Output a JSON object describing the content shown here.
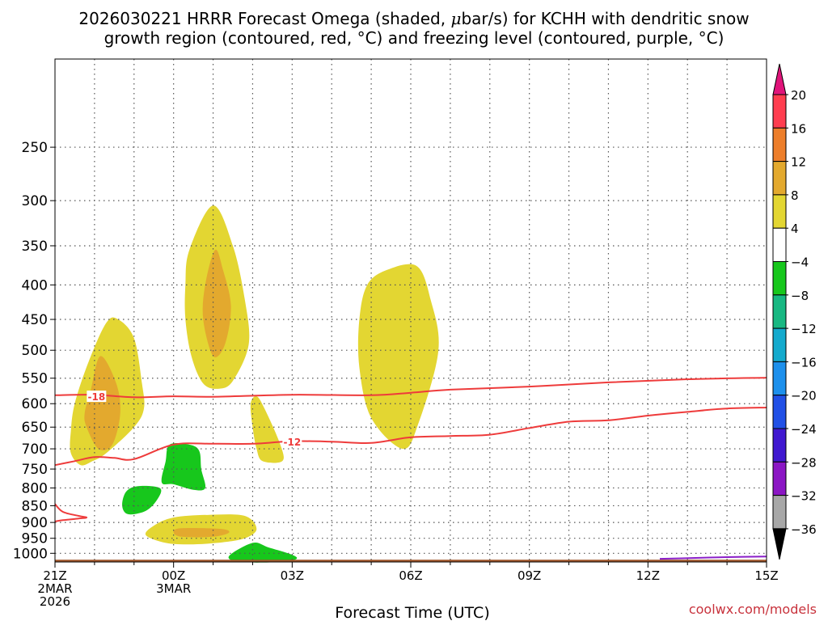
{
  "title": {
    "line1_pre": "2026030221 HRRR Forecast Omega (shaded, ",
    "line1_mu": "μ",
    "line1_post": "bar/s) for KCHH with dendritic snow",
    "line2": "growth region (contoured, red, °C) and freezing level (contoured, purple, °C)"
  },
  "watermark": "coolwx.com/models",
  "chart_data": {
    "type": "time-height cross section",
    "xlabel": "Forecast Time (UTC)",
    "ylabel": "",
    "x_range_hours": [
      0,
      18
    ],
    "y_range_hPa": [
      1030,
      185
    ],
    "y_ticks": [
      250,
      300,
      350,
      400,
      450,
      500,
      550,
      600,
      650,
      700,
      750,
      800,
      850,
      900,
      950,
      1000
    ],
    "x_ticks": [
      {
        "hour": 0,
        "lines": [
          "21Z",
          "2MAR",
          "2026"
        ]
      },
      {
        "hour": 3,
        "lines": [
          "00Z",
          "3MAR"
        ]
      },
      {
        "hour": 6,
        "lines": [
          "03Z"
        ]
      },
      {
        "hour": 9,
        "lines": [
          "06Z"
        ]
      },
      {
        "hour": 12,
        "lines": [
          "09Z"
        ]
      },
      {
        "hour": 15,
        "lines": [
          "12Z"
        ]
      },
      {
        "hour": 18,
        "lines": [
          "15Z"
        ]
      }
    ],
    "contour_labels": [
      {
        "text": "-18",
        "hour": 1.05,
        "p": 585
      },
      {
        "text": "-12",
        "hour": 6.0,
        "p": 683
      }
    ],
    "colorbar": {
      "labels": [
        "20",
        "16",
        "12",
        "8",
        "4",
        "−4",
        "−8",
        "−12",
        "−16",
        "−20",
        "−24",
        "−28",
        "−32",
        "−36"
      ],
      "colors": [
        "#ff3d4f",
        "#ed7e2b",
        "#e3a92e",
        "#e3d632",
        "#ffffff",
        "#17c71c",
        "#18b882",
        "#14aacd",
        "#1d90ec",
        "#2150e6",
        "#4018d0",
        "#8b16c4",
        "#a7a7a7"
      ],
      "top_color": "#e0147a",
      "bottom_color": "#000000"
    },
    "omega_regions": [
      {
        "name": "omega-plus4-a",
        "level": "4 to 8",
        "points": [
          [
            0.4,
            710
          ],
          [
            0.65,
            740
          ],
          [
            0.95,
            730
          ],
          [
            1.3,
            710
          ],
          [
            2.0,
            650
          ],
          [
            2.25,
            610
          ],
          [
            2.2,
            560
          ],
          [
            2.0,
            480
          ],
          [
            1.6,
            450
          ],
          [
            1.3,
            455
          ],
          [
            0.85,
            520
          ],
          [
            0.5,
            600
          ],
          [
            0.4,
            660
          ]
        ]
      },
      {
        "name": "omega-plus8-a",
        "level": "8 to 12",
        "points": [
          [
            0.8,
            650
          ],
          [
            1.1,
            700
          ],
          [
            1.45,
            690
          ],
          [
            1.65,
            620
          ],
          [
            1.55,
            560
          ],
          [
            1.15,
            510
          ],
          [
            0.9,
            575
          ],
          [
            0.75,
            620
          ]
        ]
      },
      {
        "name": "omega-plus4-b",
        "level": "4 to 8",
        "points": [
          [
            3.3,
            450
          ],
          [
            3.45,
            510
          ],
          [
            3.75,
            560
          ],
          [
            4.15,
            570
          ],
          [
            4.5,
            555
          ],
          [
            4.9,
            490
          ],
          [
            4.8,
            420
          ],
          [
            4.5,
            350
          ],
          [
            4.0,
            305
          ],
          [
            3.4,
            355
          ],
          [
            3.3,
            400
          ]
        ]
      },
      {
        "name": "omega-plus8-b",
        "level": "8 to 12",
        "points": [
          [
            3.75,
            450
          ],
          [
            4.0,
            510
          ],
          [
            4.3,
            490
          ],
          [
            4.45,
            430
          ],
          [
            4.25,
            380
          ],
          [
            4.05,
            355
          ],
          [
            3.8,
            400
          ]
        ]
      },
      {
        "name": "omega-plus4-c",
        "level": "4 to 8",
        "points": [
          [
            5.0,
            650
          ],
          [
            5.1,
            700
          ],
          [
            5.25,
            730
          ],
          [
            5.75,
            730
          ],
          [
            5.7,
            690
          ],
          [
            5.3,
            610
          ],
          [
            5.1,
            585
          ],
          [
            4.95,
            600
          ]
        ]
      },
      {
        "name": "omega-plus4-d",
        "level": "4 to 8",
        "points": [
          [
            7.7,
            450
          ],
          [
            7.7,
            530
          ],
          [
            8.0,
            630
          ],
          [
            8.8,
            700
          ],
          [
            9.2,
            640
          ],
          [
            9.7,
            500
          ],
          [
            9.5,
            420
          ],
          [
            9.15,
            375
          ],
          [
            8.4,
            380
          ],
          [
            7.9,
            400
          ]
        ]
      },
      {
        "name": "omega-plus4-e",
        "level": "4 to 8",
        "points": [
          [
            2.3,
            940
          ],
          [
            2.8,
            965
          ],
          [
            3.4,
            970
          ],
          [
            4.1,
            965
          ],
          [
            4.8,
            950
          ],
          [
            5.1,
            920
          ],
          [
            4.8,
            880
          ],
          [
            3.9,
            877
          ],
          [
            3.0,
            885
          ],
          [
            2.5,
            910
          ]
        ]
      },
      {
        "name": "omega-plus8-e",
        "level": "8 to 12",
        "points": [
          [
            3.0,
            930
          ],
          [
            3.2,
            945
          ],
          [
            4.0,
            945
          ],
          [
            4.4,
            932
          ],
          [
            4.2,
            920
          ],
          [
            3.2,
            918
          ]
        ]
      },
      {
        "name": "omega-minus4-a",
        "level": "-4 to -8",
        "points": [
          [
            2.8,
            730
          ],
          [
            2.9,
            690
          ],
          [
            3.4,
            690
          ],
          [
            3.65,
            705
          ],
          [
            3.7,
            750
          ],
          [
            3.8,
            800
          ],
          [
            3.5,
            805
          ],
          [
            3.0,
            790
          ],
          [
            2.7,
            785
          ]
        ]
      },
      {
        "name": "omega-minus4-b",
        "level": "-4 to -8",
        "points": [
          [
            1.8,
            810
          ],
          [
            1.7,
            850
          ],
          [
            1.85,
            875
          ],
          [
            2.3,
            865
          ],
          [
            2.6,
            830
          ],
          [
            2.65,
            800
          ],
          [
            2.1,
            795
          ]
        ]
      },
      {
        "name": "omega-minus4-c",
        "level": "-4 to -8",
        "points": [
          [
            4.4,
            1010
          ],
          [
            4.7,
            1030
          ],
          [
            5.7,
            1030
          ],
          [
            6.1,
            1020
          ],
          [
            6.0,
            1005
          ],
          [
            5.4,
            980
          ],
          [
            5.0,
            965
          ]
        ]
      }
    ],
    "dgz_contours": [
      {
        "name": "dgz-minus18-contour",
        "label": "-18",
        "points": [
          [
            0,
            583
          ],
          [
            1,
            582
          ],
          [
            2,
            587
          ],
          [
            3,
            585
          ],
          [
            4,
            586
          ],
          [
            6,
            582
          ],
          [
            8,
            583
          ],
          [
            9,
            578
          ],
          [
            10,
            572
          ],
          [
            12,
            566
          ],
          [
            14,
            558
          ],
          [
            16,
            552
          ],
          [
            18,
            549
          ]
        ]
      },
      {
        "name": "dgz-minus12-contour",
        "label": "-12",
        "points": [
          [
            0,
            740
          ],
          [
            0.5,
            730
          ],
          [
            1,
            720
          ],
          [
            1.5,
            722
          ],
          [
            2,
            725
          ],
          [
            3,
            690
          ],
          [
            4,
            688
          ],
          [
            5,
            688
          ],
          [
            6,
            682
          ],
          [
            7,
            683
          ],
          [
            8,
            686
          ],
          [
            9,
            673
          ],
          [
            10,
            670
          ],
          [
            11,
            667
          ],
          [
            12,
            652
          ],
          [
            13,
            638
          ],
          [
            14,
            635
          ],
          [
            15,
            625
          ],
          [
            16,
            617
          ],
          [
            17,
            610
          ],
          [
            18,
            608
          ]
        ]
      },
      {
        "name": "dgz-lower-contour",
        "label": "",
        "points": [
          [
            0,
            845
          ],
          [
            0.2,
            868
          ],
          [
            0.6,
            880
          ],
          [
            0.8,
            885
          ],
          [
            0.6,
            888
          ],
          [
            0.2,
            893
          ],
          [
            0,
            897
          ]
        ]
      }
    ],
    "freezing_level": {
      "name": "freezing-level-contour",
      "label": "0",
      "points": [
        [
          15.3,
          1019
        ],
        [
          16.2,
          1016
        ],
        [
          17,
          1013
        ],
        [
          18,
          1011
        ]
      ]
    },
    "surface_pressure_hPa": 1022
  }
}
